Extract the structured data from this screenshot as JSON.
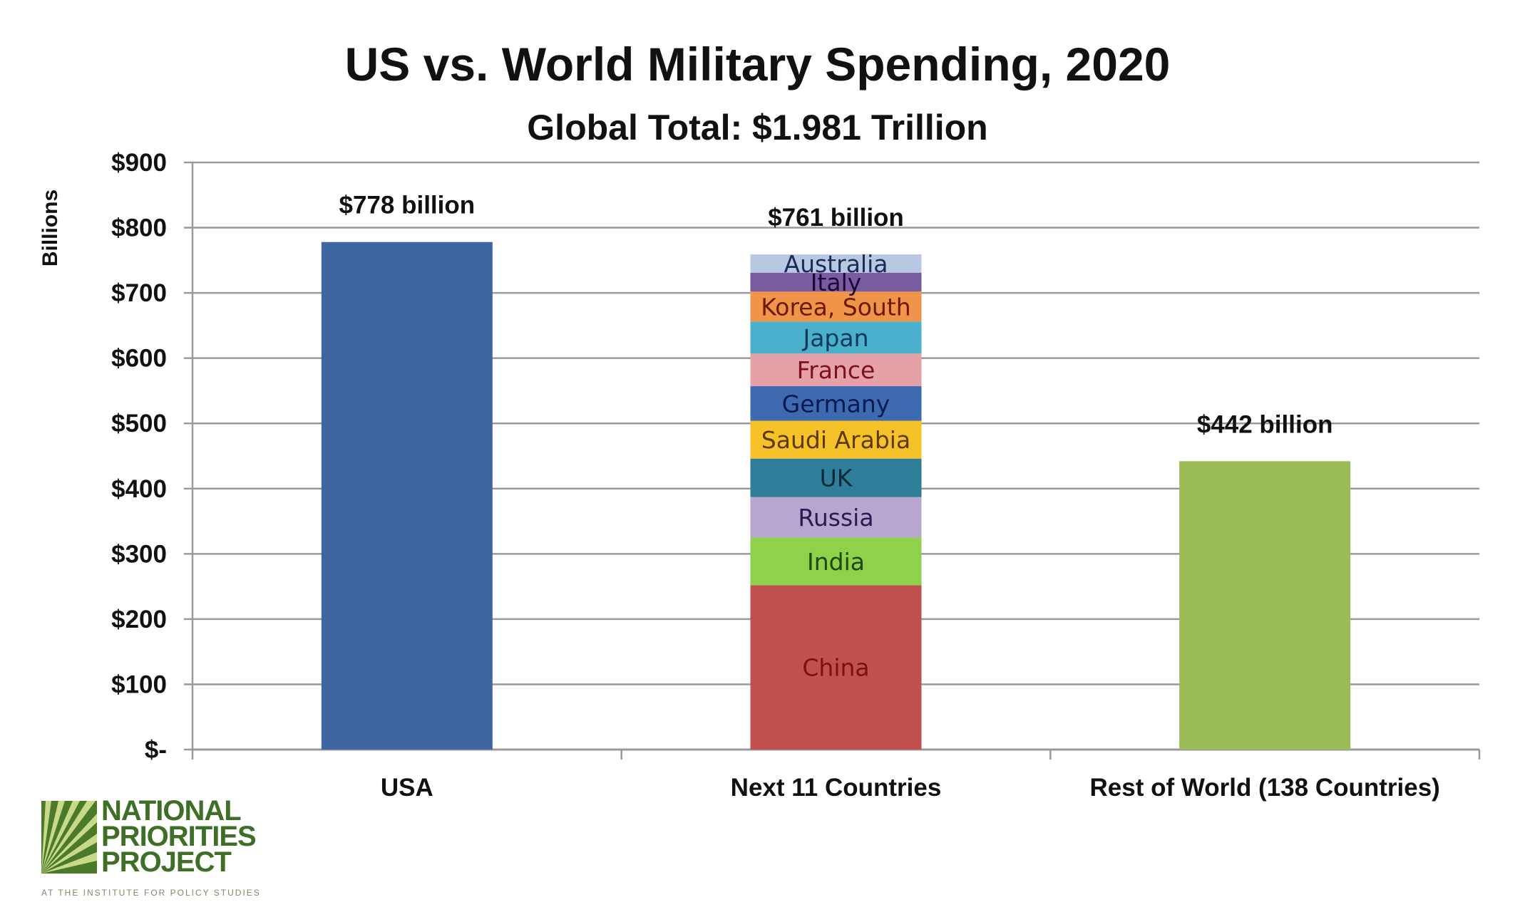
{
  "chart_data": {
    "type": "bar",
    "title": "US vs. World Military Spending, 2020",
    "subtitle": "Global Total: $1.981 Trillion",
    "ylabel": "Billions",
    "xlabel": "",
    "ylim": [
      0,
      900
    ],
    "yticks": [
      0,
      100,
      200,
      300,
      400,
      500,
      600,
      700,
      800,
      900
    ],
    "ytick_labels": [
      "$-",
      "$100",
      "$200",
      "$300",
      "$400",
      "$500",
      "$600",
      "$700",
      "$800",
      "$900"
    ],
    "grid": true,
    "categories": [
      "USA",
      "Next 11 Countries",
      "Rest of World (138 Countries)"
    ],
    "bars": [
      {
        "category": "USA",
        "label": "$778 billion",
        "segments": [
          {
            "name": "USA",
            "value": 778,
            "color": "#3e66a0"
          }
        ]
      },
      {
        "category": "Next 11 Countries",
        "label": "$761 billion",
        "segments": [
          {
            "name": "China",
            "value": 252,
            "color": "#c0504d",
            "text_color": "#7a1010"
          },
          {
            "name": "India",
            "value": 73,
            "color": "#8fd14a",
            "text_color": "#1a4a0a"
          },
          {
            "name": "Russia",
            "value": 62,
            "color": "#b7a6cf",
            "text_color": "#2a1a50"
          },
          {
            "name": "UK",
            "value": 59,
            "color": "#2e7e9a",
            "text_color": "#0a2a3a"
          },
          {
            "name": "Saudi Arabia",
            "value": 58,
            "color": "#f5c22a",
            "text_color": "#5a3a00"
          },
          {
            "name": "Germany",
            "value": 53,
            "color": "#3e6ab0",
            "text_color": "#0a1a50"
          },
          {
            "name": "France",
            "value": 50,
            "color": "#e6a0a8",
            "text_color": "#7a1020"
          },
          {
            "name": "Japan",
            "value": 49,
            "color": "#4ab0cc",
            "text_color": "#0a3a5a"
          },
          {
            "name": "Korea, South",
            "value": 46,
            "color": "#f0944a",
            "text_color": "#6a1a00"
          },
          {
            "name": "Italy",
            "value": 29,
            "color": "#7a5aa0",
            "text_color": "#1a0a3a"
          },
          {
            "name": "Australia",
            "value": 28,
            "color": "#b8c8e0",
            "text_color": "#1a2a5a"
          }
        ]
      },
      {
        "category": "Rest of World (138 Countries)",
        "label": "$442 billion",
        "segments": [
          {
            "name": "Rest of World",
            "value": 442,
            "color": "#9bbb59"
          }
        ]
      }
    ]
  },
  "logo": {
    "line1": "NATIONAL",
    "line2": "PRIORITIES",
    "line3": "PROJECT",
    "tagline": "AT THE INSTITUTE FOR POLICY STUDIES"
  }
}
